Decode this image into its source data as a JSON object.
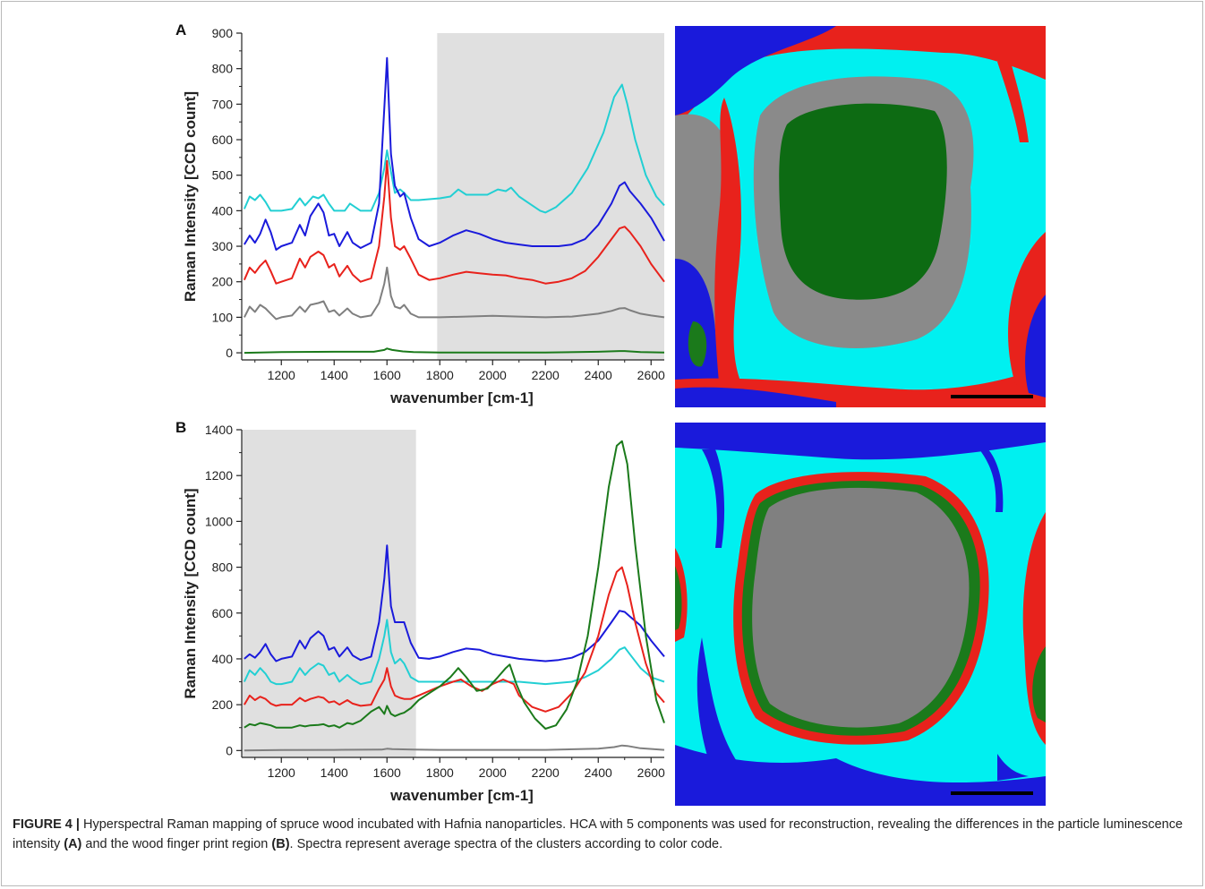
{
  "chart_data": [
    {
      "type": "line",
      "panel_label": "A",
      "xlabel": "wavenumber [cm-1]",
      "ylabel": "Raman Intensity [CCD count]",
      "xlim": [
        1050,
        2650
      ],
      "ylim": [
        -20,
        900
      ],
      "xticks": [
        1200,
        1400,
        1600,
        1800,
        2000,
        2200,
        2400,
        2600
      ],
      "yticks": [
        0,
        100,
        200,
        300,
        400,
        500,
        600,
        700,
        800,
        900
      ],
      "shaded_region": [
        1790,
        2650
      ],
      "series": [
        {
          "color": "#22cfd3",
          "x": [
            1060,
            1080,
            1100,
            1120,
            1140,
            1160,
            1180,
            1200,
            1240,
            1270,
            1290,
            1320,
            1340,
            1360,
            1380,
            1400,
            1440,
            1460,
            1500,
            1540,
            1570,
            1590,
            1600,
            1615,
            1630,
            1650,
            1665,
            1690,
            1720,
            1800,
            1840,
            1870,
            1900,
            1940,
            1980,
            2020,
            2050,
            2070,
            2100,
            2140,
            2180,
            2200,
            2240,
            2300,
            2360,
            2420,
            2460,
            2490,
            2510,
            2540,
            2580,
            2620,
            2650
          ],
          "y": [
            405,
            440,
            430,
            445,
            425,
            400,
            400,
            400,
            405,
            435,
            415,
            440,
            435,
            445,
            420,
            400,
            400,
            420,
            400,
            400,
            450,
            520,
            570,
            510,
            450,
            460,
            450,
            430,
            430,
            435,
            440,
            460,
            445,
            445,
            445,
            460,
            455,
            465,
            440,
            420,
            400,
            395,
            410,
            450,
            520,
            620,
            720,
            755,
            700,
            600,
            500,
            440,
            415
          ]
        },
        {
          "color": "#1a1adb",
          "x": [
            1060,
            1080,
            1100,
            1120,
            1140,
            1160,
            1180,
            1200,
            1240,
            1270,
            1290,
            1310,
            1340,
            1360,
            1380,
            1400,
            1420,
            1450,
            1470,
            1500,
            1540,
            1570,
            1590,
            1600,
            1615,
            1630,
            1650,
            1665,
            1690,
            1720,
            1760,
            1800,
            1850,
            1900,
            1950,
            2000,
            2050,
            2100,
            2150,
            2200,
            2250,
            2300,
            2350,
            2400,
            2450,
            2480,
            2500,
            2520,
            2560,
            2600,
            2650
          ],
          "y": [
            305,
            330,
            310,
            335,
            375,
            340,
            290,
            300,
            310,
            360,
            330,
            385,
            420,
            395,
            330,
            335,
            300,
            340,
            310,
            295,
            310,
            420,
            690,
            830,
            560,
            470,
            440,
            450,
            380,
            320,
            300,
            310,
            330,
            345,
            335,
            320,
            310,
            305,
            300,
            300,
            300,
            305,
            320,
            360,
            420,
            470,
            480,
            455,
            420,
            380,
            315
          ]
        },
        {
          "color": "#e8221c",
          "x": [
            1060,
            1080,
            1100,
            1120,
            1140,
            1160,
            1180,
            1200,
            1240,
            1270,
            1290,
            1310,
            1340,
            1360,
            1380,
            1400,
            1420,
            1450,
            1470,
            1500,
            1540,
            1570,
            1590,
            1600,
            1615,
            1630,
            1650,
            1665,
            1690,
            1720,
            1760,
            1800,
            1850,
            1900,
            1950,
            2000,
            2050,
            2100,
            2150,
            2200,
            2250,
            2300,
            2350,
            2400,
            2450,
            2480,
            2500,
            2520,
            2560,
            2600,
            2650
          ],
          "y": [
            205,
            240,
            225,
            245,
            260,
            230,
            195,
            200,
            210,
            265,
            240,
            270,
            285,
            275,
            240,
            250,
            215,
            245,
            220,
            200,
            210,
            300,
            440,
            540,
            380,
            300,
            290,
            300,
            265,
            220,
            205,
            210,
            220,
            228,
            224,
            220,
            218,
            210,
            205,
            195,
            200,
            210,
            230,
            270,
            320,
            350,
            355,
            340,
            300,
            250,
            200
          ]
        },
        {
          "color": "#7f7f7f",
          "x": [
            1060,
            1080,
            1100,
            1120,
            1140,
            1160,
            1180,
            1200,
            1240,
            1270,
            1290,
            1310,
            1340,
            1360,
            1380,
            1400,
            1420,
            1450,
            1470,
            1500,
            1540,
            1570,
            1590,
            1600,
            1615,
            1630,
            1650,
            1665,
            1690,
            1720,
            1800,
            1900,
            2000,
            2100,
            2200,
            2300,
            2400,
            2450,
            2480,
            2500,
            2520,
            2560,
            2600,
            2650
          ],
          "y": [
            100,
            130,
            115,
            135,
            125,
            110,
            95,
            100,
            105,
            130,
            115,
            135,
            140,
            145,
            115,
            120,
            105,
            125,
            110,
            100,
            105,
            140,
            195,
            240,
            160,
            130,
            125,
            135,
            110,
            100,
            100,
            102,
            104,
            102,
            100,
            102,
            110,
            118,
            125,
            126,
            120,
            110,
            105,
            100
          ]
        },
        {
          "color": "#1b7a1b",
          "x": [
            1060,
            1200,
            1400,
            1550,
            1590,
            1600,
            1620,
            1660,
            1700,
            1800,
            2000,
            2200,
            2400,
            2480,
            2500,
            2560,
            2650
          ],
          "y": [
            0,
            2,
            3,
            3,
            8,
            12,
            8,
            4,
            2,
            1,
            1,
            1,
            3,
            5,
            5,
            2,
            1
          ]
        }
      ]
    },
    {
      "type": "line",
      "panel_label": "B",
      "xlabel": "wavenumber [cm-1]",
      "ylabel": "Raman Intensity [CCD count]",
      "xlim": [
        1050,
        2650
      ],
      "ylim": [
        -30,
        1400
      ],
      "xticks": [
        1200,
        1400,
        1600,
        1800,
        2000,
        2200,
        2400,
        2600
      ],
      "yticks": [
        0,
        200,
        400,
        600,
        800,
        1000,
        1200,
        1400
      ],
      "shaded_region": [
        1050,
        1710
      ],
      "series": [
        {
          "color": "#1a1adb",
          "x": [
            1060,
            1080,
            1100,
            1120,
            1140,
            1160,
            1180,
            1200,
            1240,
            1270,
            1290,
            1310,
            1340,
            1360,
            1380,
            1400,
            1420,
            1450,
            1470,
            1500,
            1540,
            1570,
            1590,
            1600,
            1615,
            1630,
            1650,
            1665,
            1690,
            1720,
            1760,
            1800,
            1850,
            1900,
            1950,
            2000,
            2050,
            2100,
            2150,
            2200,
            2250,
            2300,
            2350,
            2400,
            2450,
            2480,
            2500,
            2520,
            2560,
            2600,
            2650
          ],
          "y": [
            400,
            420,
            405,
            430,
            465,
            420,
            390,
            400,
            410,
            480,
            445,
            490,
            520,
            500,
            440,
            450,
            410,
            450,
            415,
            395,
            410,
            560,
            750,
            895,
            630,
            560,
            560,
            560,
            470,
            405,
            400,
            410,
            430,
            445,
            440,
            420,
            410,
            400,
            395,
            390,
            395,
            405,
            430,
            480,
            560,
            610,
            605,
            585,
            545,
            480,
            410
          ]
        },
        {
          "color": "#22cfd3",
          "x": [
            1060,
            1080,
            1100,
            1120,
            1140,
            1160,
            1180,
            1200,
            1240,
            1270,
            1290,
            1310,
            1340,
            1360,
            1380,
            1400,
            1420,
            1450,
            1470,
            1500,
            1540,
            1570,
            1590,
            1600,
            1615,
            1630,
            1650,
            1665,
            1690,
            1720,
            1800,
            1900,
            2000,
            2100,
            2200,
            2300,
            2350,
            2400,
            2450,
            2480,
            2500,
            2520,
            2560,
            2600,
            2650
          ],
          "y": [
            300,
            350,
            330,
            360,
            335,
            300,
            290,
            290,
            300,
            360,
            330,
            355,
            380,
            370,
            330,
            340,
            300,
            330,
            310,
            290,
            300,
            400,
            500,
            570,
            430,
            380,
            400,
            380,
            320,
            300,
            300,
            300,
            300,
            300,
            290,
            300,
            320,
            350,
            400,
            440,
            450,
            420,
            360,
            320,
            300
          ]
        },
        {
          "color": "#e8221c",
          "x": [
            1060,
            1080,
            1100,
            1120,
            1140,
            1160,
            1180,
            1200,
            1240,
            1270,
            1290,
            1310,
            1340,
            1360,
            1380,
            1400,
            1420,
            1450,
            1470,
            1500,
            1540,
            1570,
            1590,
            1600,
            1615,
            1630,
            1650,
            1665,
            1690,
            1720,
            1760,
            1800,
            1850,
            1880,
            1920,
            1960,
            2000,
            2040,
            2080,
            2100,
            2150,
            2200,
            2250,
            2300,
            2350,
            2400,
            2440,
            2470,
            2490,
            2510,
            2540,
            2580,
            2620,
            2650
          ],
          "y": [
            200,
            240,
            220,
            235,
            225,
            205,
            195,
            200,
            200,
            230,
            215,
            225,
            235,
            230,
            210,
            215,
            200,
            220,
            205,
            195,
            200,
            270,
            310,
            360,
            280,
            240,
            230,
            225,
            225,
            240,
            260,
            280,
            300,
            310,
            280,
            260,
            290,
            310,
            290,
            240,
            190,
            170,
            190,
            250,
            340,
            500,
            680,
            780,
            800,
            720,
            560,
            380,
            250,
            210
          ]
        },
        {
          "color": "#1b7a1b",
          "x": [
            1060,
            1080,
            1100,
            1120,
            1140,
            1160,
            1180,
            1200,
            1240,
            1270,
            1290,
            1310,
            1340,
            1360,
            1380,
            1400,
            1420,
            1450,
            1470,
            1500,
            1540,
            1570,
            1590,
            1600,
            1615,
            1630,
            1650,
            1665,
            1690,
            1720,
            1760,
            1800,
            1840,
            1870,
            1900,
            1940,
            1980,
            2020,
            2050,
            2065,
            2090,
            2120,
            2160,
            2200,
            2240,
            2280,
            2320,
            2360,
            2400,
            2440,
            2470,
            2490,
            2510,
            2540,
            2580,
            2620,
            2650
          ],
          "y": [
            100,
            115,
            110,
            120,
            115,
            110,
            100,
            100,
            100,
            110,
            105,
            110,
            112,
            115,
            105,
            110,
            100,
            120,
            115,
            130,
            170,
            190,
            160,
            195,
            160,
            150,
            160,
            165,
            185,
            220,
            250,
            280,
            320,
            360,
            320,
            260,
            270,
            320,
            360,
            375,
            290,
            210,
            140,
            95,
            110,
            180,
            300,
            500,
            800,
            1150,
            1330,
            1350,
            1250,
            900,
            500,
            220,
            120
          ]
        },
        {
          "color": "#7f7f7f",
          "x": [
            1060,
            1200,
            1400,
            1580,
            1600,
            1620,
            1700,
            1800,
            2000,
            2200,
            2400,
            2460,
            2490,
            2510,
            2560,
            2650
          ],
          "y": [
            0,
            2,
            3,
            4,
            8,
            6,
            4,
            3,
            3,
            3,
            8,
            15,
            22,
            20,
            10,
            3
          ]
        }
      ]
    }
  ],
  "caption": {
    "label": "FIGURE 4 |",
    "part1": "Hyperspectral Raman mapping of spruce wood incubated with Hafnia nanoparticles. HCA with 5 components was used for reconstruction, revealing the differences in the particle luminescence intensity",
    "ref_a": "(A)",
    "part2": "and the wood finger print region",
    "ref_b": "(B)",
    "part3": ". Spectra represent average spectra of the clusters according to color code."
  },
  "colors": {
    "cyan": "#22cfd3",
    "blue": "#1a1adb",
    "red": "#e8221c",
    "gray": "#7f7f7f",
    "green": "#1b7a1b",
    "shade": "#e0e0e0"
  }
}
